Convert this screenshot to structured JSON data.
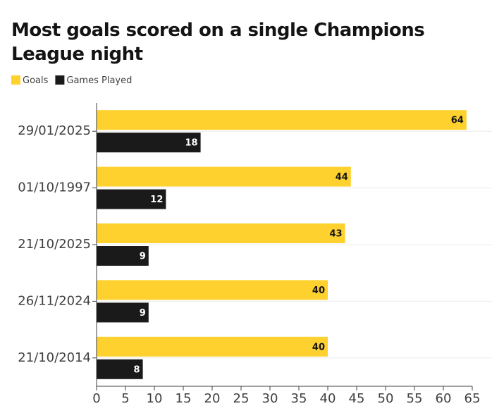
{
  "chart_data": {
    "type": "bar",
    "orientation": "horizontal",
    "title": "Most goals scored on a single Champions League night",
    "categories": [
      "29/01/2025",
      "01/10/1997",
      "21/10/2025",
      "26/11/2024",
      "21/10/2014"
    ],
    "series": [
      {
        "name": "Goals",
        "color": "#fed12e",
        "values": [
          64,
          44,
          43,
          40,
          40
        ]
      },
      {
        "name": "Games Played",
        "color": "#1a1a1a",
        "values": [
          18,
          12,
          9,
          9,
          8
        ]
      }
    ],
    "xlim": [
      0,
      65
    ],
    "xticks": [
      0,
      5,
      10,
      15,
      20,
      25,
      30,
      35,
      40,
      45,
      50,
      55,
      60,
      65
    ],
    "legend": "top-left",
    "grid": true
  }
}
